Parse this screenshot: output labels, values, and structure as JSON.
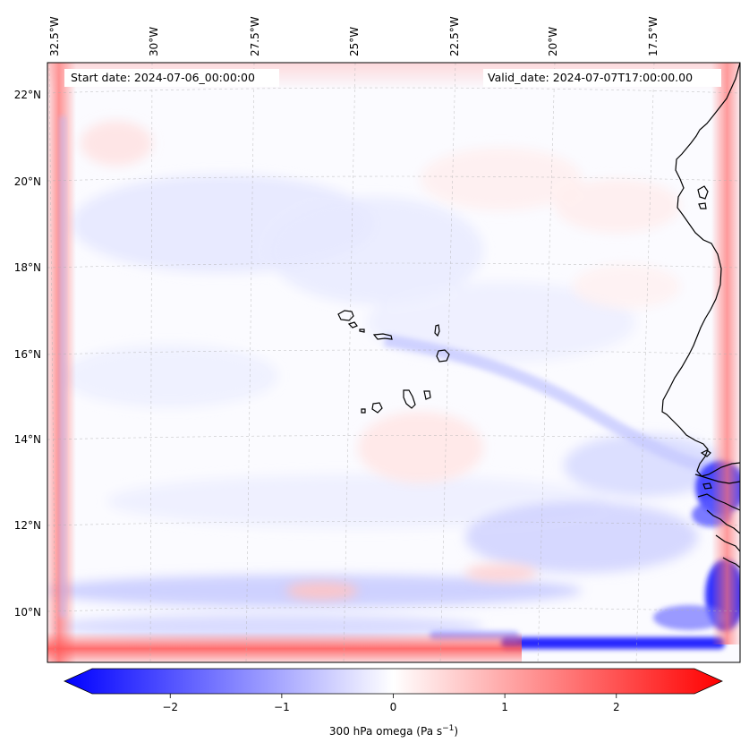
{
  "map": {
    "start_label": "Start date: 2024-07-06_00:00:00",
    "valid_label": "Valid_date: 2024-07-07T17:00:00.00",
    "longitude_labels": [
      "32.5°W",
      "30°W",
      "27.5°W",
      "25°W",
      "22.5°W",
      "20°W",
      "17.5°W"
    ],
    "latitude_labels": [
      "22°N",
      "20°N",
      "18°N",
      "16°N",
      "14°N",
      "12°N",
      "10°N"
    ],
    "field": "300 hPa omega",
    "palette": {
      "negative": "#0000ff",
      "neutral": "#ffffff",
      "positive": "#ff0000",
      "coastline": "#000000"
    }
  },
  "colorbar": {
    "label_main": "300 hPa omega (Pa s",
    "label_exp": "−1",
    "label_close": ")",
    "ticks": [
      "−2",
      "−1",
      "0",
      "1",
      "2"
    ],
    "range": [
      -2.7,
      2.7
    ],
    "extend": "both"
  }
}
